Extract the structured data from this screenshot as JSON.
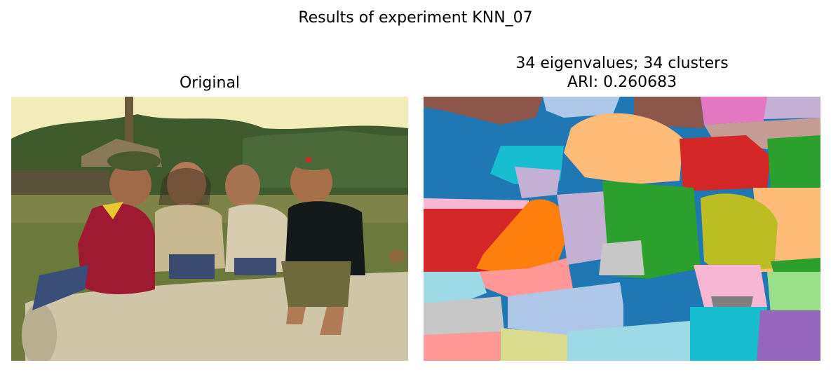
{
  "figure": {
    "suptitle": "Results of experiment KNN_07"
  },
  "panels": {
    "original": {
      "title": "Original"
    },
    "segmentation": {
      "title_line1": "34 eigenvalues; 34 clusters",
      "title_line2": "ARI: 0.260683"
    }
  },
  "colors": {
    "tab_blue": "#1f77b4",
    "tab_light_blue": "#aec7e8",
    "tab_orange": "#ff7f0e",
    "tab_light_orange": "#ffbb78",
    "tab_green": "#2ca02c",
    "tab_light_green": "#98df8a",
    "tab_red": "#d62728",
    "tab_pink": "#ff9896",
    "tab_purple": "#9467bd",
    "tab_lavender": "#c5b0d5",
    "tab_brown": "#8c564b",
    "tab_rose": "#c49c94",
    "tab_magenta": "#e377c2",
    "tab_light_pink": "#f7b6d2",
    "tab_gray": "#7f7f7f",
    "tab_light_gray": "#c7c7c7",
    "tab_olive": "#bcbd22",
    "tab_khaki": "#dbdb8d",
    "tab_cyan": "#17becf",
    "tab_light_cyan": "#9edae5"
  }
}
